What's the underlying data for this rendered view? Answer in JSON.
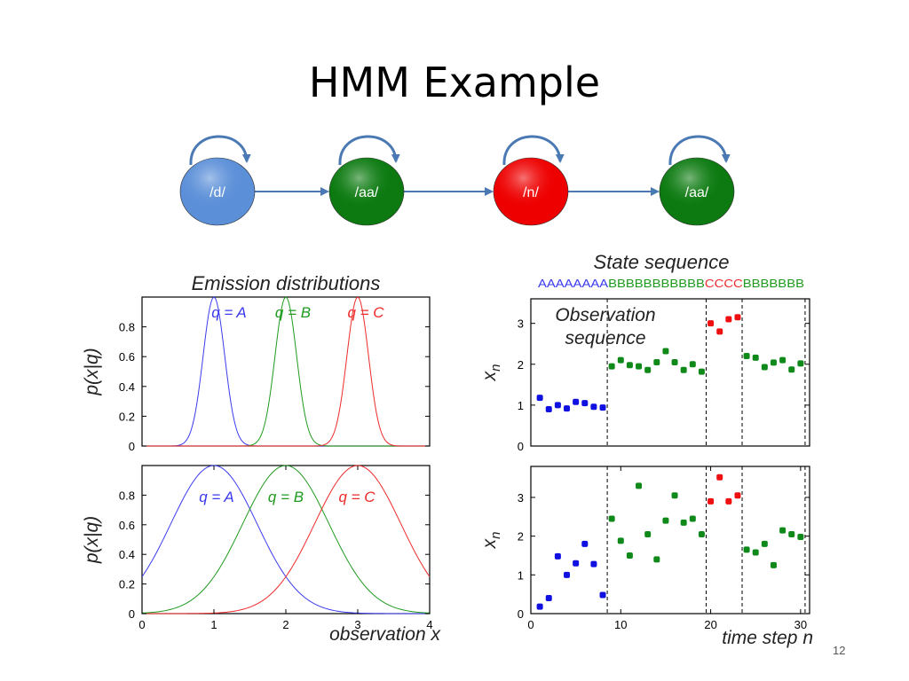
{
  "slide": {
    "title": "HMM Example",
    "page_number": "12"
  },
  "hmm_diagram": {
    "states": [
      {
        "label": "/d/",
        "color": "#5b8fd8"
      },
      {
        "label": "/aa/",
        "color": "#0c7a10"
      },
      {
        "label": "/n/",
        "color": "#ee0000"
      },
      {
        "label": "/aa/",
        "color": "#0c7a10"
      }
    ],
    "arrow_color": "#4a79b3"
  },
  "chart_data": [
    {
      "id": "emission-narrow",
      "type": "line",
      "title": "Emission distributions",
      "xlabel": "",
      "ylabel": "p(x|q)",
      "xlim": [
        0,
        4
      ],
      "ylim": [
        0,
        1
      ],
      "yticks": [
        "0",
        "0.2",
        "0.4",
        "0.6",
        "0.8"
      ],
      "series": [
        {
          "name": "q = A",
          "mean": 1,
          "sd": 0.15,
          "color": "#3b3bee"
        },
        {
          "name": "q = B",
          "mean": 2,
          "sd": 0.15,
          "color": "#1f9a1f"
        },
        {
          "name": "q = C",
          "mean": 3,
          "sd": 0.15,
          "color": "#ee2a2a"
        }
      ]
    },
    {
      "id": "emission-wide",
      "type": "line",
      "title": "",
      "xlabel": "observation x",
      "ylabel": "p(x|q)",
      "xlim": [
        0,
        4
      ],
      "ylim": [
        0,
        1
      ],
      "xticks": [
        "0",
        "1",
        "2",
        "3",
        "4"
      ],
      "yticks": [
        "0",
        "0.2",
        "0.4",
        "0.6",
        "0.8"
      ],
      "series": [
        {
          "name": "q = A",
          "mean": 1,
          "sd": 0.6,
          "color": "#3b3bee"
        },
        {
          "name": "q = B",
          "mean": 2,
          "sd": 0.6,
          "color": "#1f9a1f"
        },
        {
          "name": "q = C",
          "mean": 3,
          "sd": 0.6,
          "color": "#ee2a2a"
        }
      ]
    },
    {
      "id": "observation-sequence-top",
      "type": "scatter",
      "title": "State sequence",
      "annotation": "Observation sequence",
      "state_sequence": [
        {
          "text": "AAAAAAAA",
          "color": "#3b3bee"
        },
        {
          "text": "BBBBBBBBBBB",
          "color": "#1f9a1f"
        },
        {
          "text": "CCCC",
          "color": "#ee2a2a"
        },
        {
          "text": "BBBBBBB",
          "color": "#1f9a1f"
        }
      ],
      "xlabel": "",
      "ylabel": "x_n",
      "xlim": [
        0,
        31
      ],
      "ylim": [
        0,
        3.6
      ],
      "yticks": [
        "0",
        "1",
        "2",
        "3"
      ],
      "boundaries": [
        8.5,
        19.5,
        23.5,
        30.5
      ],
      "points": {
        "A": {
          "color": "#1010e0",
          "x": [
            1,
            2,
            3,
            4,
            5,
            6,
            7,
            8
          ],
          "y": [
            1.18,
            0.9,
            1.0,
            0.92,
            1.08,
            1.05,
            0.96,
            0.94
          ]
        },
        "B": {
          "color": "#0f8a1a",
          "x": [
            9,
            10,
            11,
            12,
            13,
            14,
            15,
            16,
            17,
            18,
            19,
            24,
            25,
            26,
            27,
            28,
            29,
            30
          ],
          "y": [
            1.95,
            2.1,
            1.98,
            1.95,
            1.86,
            2.05,
            2.32,
            2.05,
            1.86,
            2.0,
            1.82,
            2.2,
            2.16,
            1.93,
            2.04,
            2.1,
            1.87,
            2.02
          ]
        },
        "C": {
          "color": "#ee1010",
          "x": [
            20,
            21,
            22,
            23
          ],
          "y": [
            3.0,
            2.8,
            3.1,
            3.15
          ]
        }
      }
    },
    {
      "id": "observation-sequence-bottom",
      "type": "scatter",
      "title": "",
      "xlabel": "time step n",
      "ylabel": "x_n",
      "xlim": [
        0,
        31
      ],
      "ylim": [
        0,
        3.8
      ],
      "xticks": [
        "0",
        "10",
        "20",
        "30"
      ],
      "yticks": [
        "0",
        "1",
        "2",
        "3"
      ],
      "boundaries": [
        8.5,
        19.5,
        23.5,
        30.5
      ],
      "points": {
        "A": {
          "color": "#1010e0",
          "x": [
            1,
            2,
            3,
            4,
            5,
            6,
            7,
            8
          ],
          "y": [
            0.18,
            0.4,
            1.48,
            1.0,
            1.3,
            1.8,
            1.28,
            0.48
          ]
        },
        "B": {
          "color": "#0f8a1a",
          "x": [
            9,
            10,
            11,
            12,
            13,
            14,
            15,
            16,
            17,
            18,
            19,
            24,
            25,
            26,
            27,
            28,
            29,
            30
          ],
          "y": [
            2.45,
            1.88,
            1.5,
            3.3,
            2.05,
            1.4,
            2.4,
            3.05,
            2.35,
            2.45,
            2.05,
            1.65,
            1.58,
            1.8,
            1.25,
            2.15,
            2.05,
            1.98
          ]
        },
        "C": {
          "color": "#ee1010",
          "x": [
            20,
            21,
            22,
            23
          ],
          "y": [
            2.9,
            3.52,
            2.9,
            3.05
          ]
        }
      }
    }
  ]
}
